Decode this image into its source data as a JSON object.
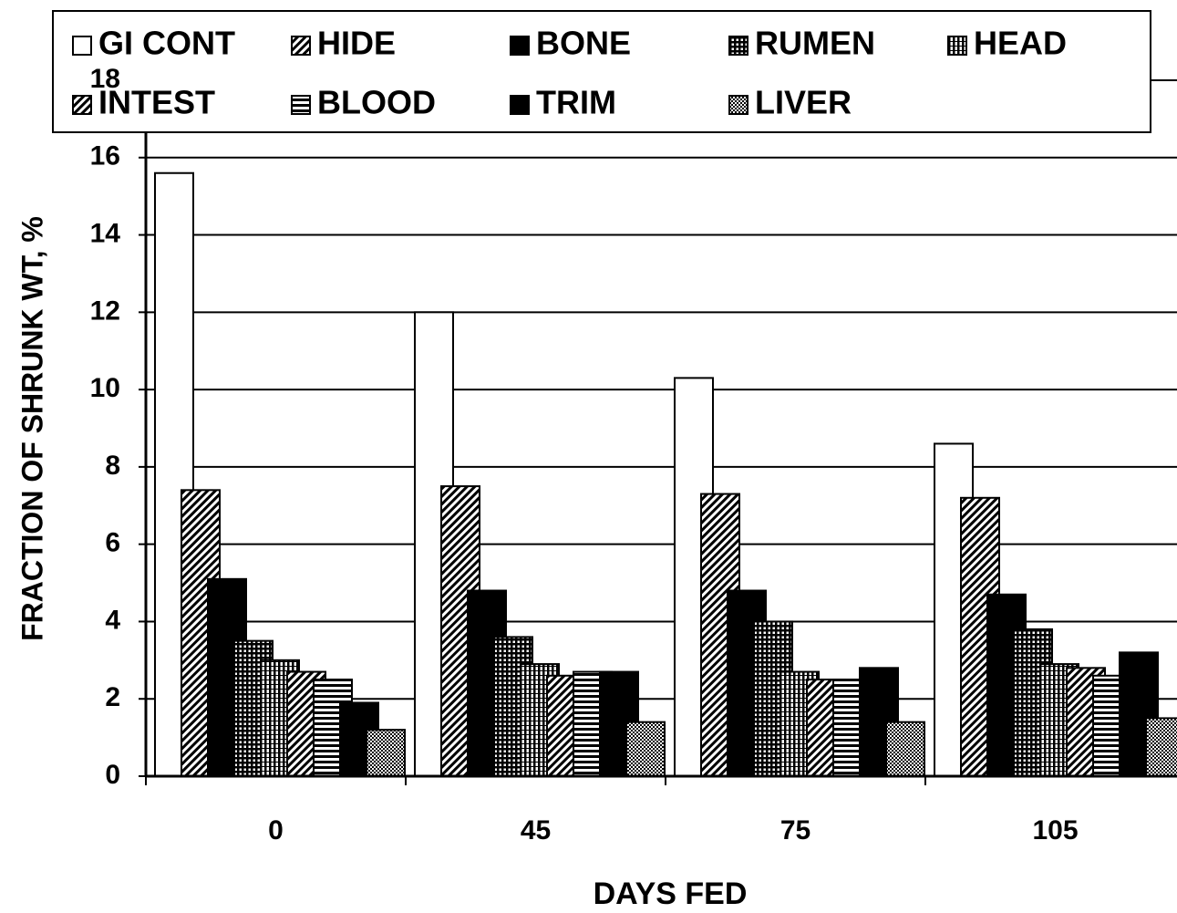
{
  "chart_data": {
    "type": "bar",
    "xlabel": "DAYS FED",
    "ylabel": "FRACTION OF SHRUNK WT, %",
    "categories": [
      "0",
      "45",
      "75",
      "105"
    ],
    "ylim": [
      0,
      18
    ],
    "yticks": [
      0,
      2,
      4,
      6,
      8,
      10,
      12,
      14,
      16,
      18
    ],
    "grid": true,
    "series": [
      {
        "name": "GI CONT",
        "color": "#ffffff",
        "pattern": "solid",
        "values": [
          15.6,
          12.0,
          10.3,
          8.6
        ]
      },
      {
        "name": "HIDE",
        "color": "#000000",
        "pattern": "diagonal",
        "values": [
          7.4,
          7.5,
          7.3,
          7.2
        ]
      },
      {
        "name": "BONE",
        "color": "#000000",
        "pattern": "solid",
        "values": [
          5.1,
          4.8,
          4.8,
          4.7
        ]
      },
      {
        "name": "RUMEN",
        "color": "#000000",
        "pattern": "crosshatch",
        "values": [
          3.5,
          3.6,
          4.0,
          3.8
        ]
      },
      {
        "name": "HEAD",
        "color": "#000000",
        "pattern": "vertical",
        "values": [
          3.0,
          2.9,
          2.7,
          2.9
        ]
      },
      {
        "name": "INTEST",
        "color": "#000000",
        "pattern": "diagonal",
        "values": [
          2.7,
          2.6,
          2.5,
          2.8
        ]
      },
      {
        "name": "BLOOD",
        "color": "#000000",
        "pattern": "horizontal",
        "values": [
          2.5,
          2.7,
          2.5,
          2.6
        ]
      },
      {
        "name": "TRIM",
        "color": "#000000",
        "pattern": "solid",
        "values": [
          1.9,
          2.7,
          2.8,
          3.2
        ]
      },
      {
        "name": "LIVER",
        "color": "#000000",
        "pattern": "dots",
        "values": [
          1.2,
          1.4,
          1.4,
          1.5
        ]
      }
    ]
  }
}
